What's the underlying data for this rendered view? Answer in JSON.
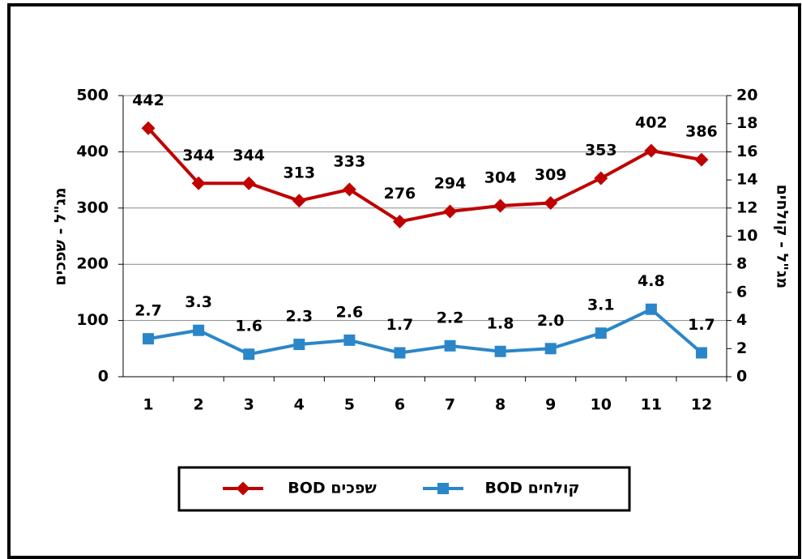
{
  "chart_data": {
    "type": "line",
    "categories": [
      "1",
      "2",
      "3",
      "4",
      "5",
      "6",
      "7",
      "8",
      "9",
      "10",
      "11",
      "12"
    ],
    "y_label": "מג\"ל - שפכים",
    "y2_label": "מג\"ל - קולחים",
    "ylim": [
      0,
      500
    ],
    "yticks": [
      0,
      100,
      200,
      300,
      400,
      500
    ],
    "y2lim": [
      0,
      20
    ],
    "y2ticks": [
      0,
      2,
      4,
      6,
      8,
      10,
      12,
      14,
      16,
      18,
      20
    ],
    "grid": true,
    "legend": "bottom",
    "series": [
      {
        "name": "שפכים BOD",
        "color": "#c00000",
        "marker": "diamond",
        "values": [
          442,
          344,
          344,
          313,
          333,
          276,
          294,
          304,
          309,
          353,
          402,
          386
        ]
      },
      {
        "name": "קולחים BOD",
        "color": "#2b86c9",
        "marker": "square",
        "axis": "y2",
        "values": [
          2.7,
          3.3,
          1.6,
          2.3,
          2.6,
          1.7,
          2.2,
          1.8,
          2.0,
          3.1,
          4.8,
          1.7
        ],
        "value_labels": [
          "2.7",
          "3.3",
          "1.6",
          "2.3",
          "2.6",
          "1.7",
          "2.2",
          "1.8",
          "2.0",
          "3.1",
          "4.8",
          "1.7"
        ]
      }
    ]
  }
}
